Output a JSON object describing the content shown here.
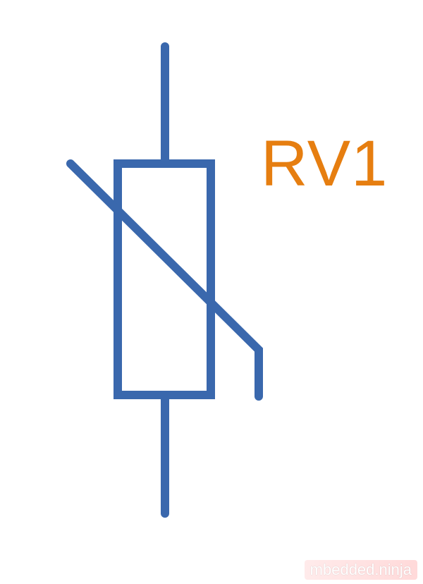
{
  "diagram": {
    "reference_designator": "RV1",
    "symbol_icon": "varistor-symbol-icon",
    "colors": {
      "symbol": "#3a68ad",
      "label": "#e67e10",
      "background": "#ffffff"
    }
  },
  "watermark": {
    "text": "mbedded.ninja"
  }
}
